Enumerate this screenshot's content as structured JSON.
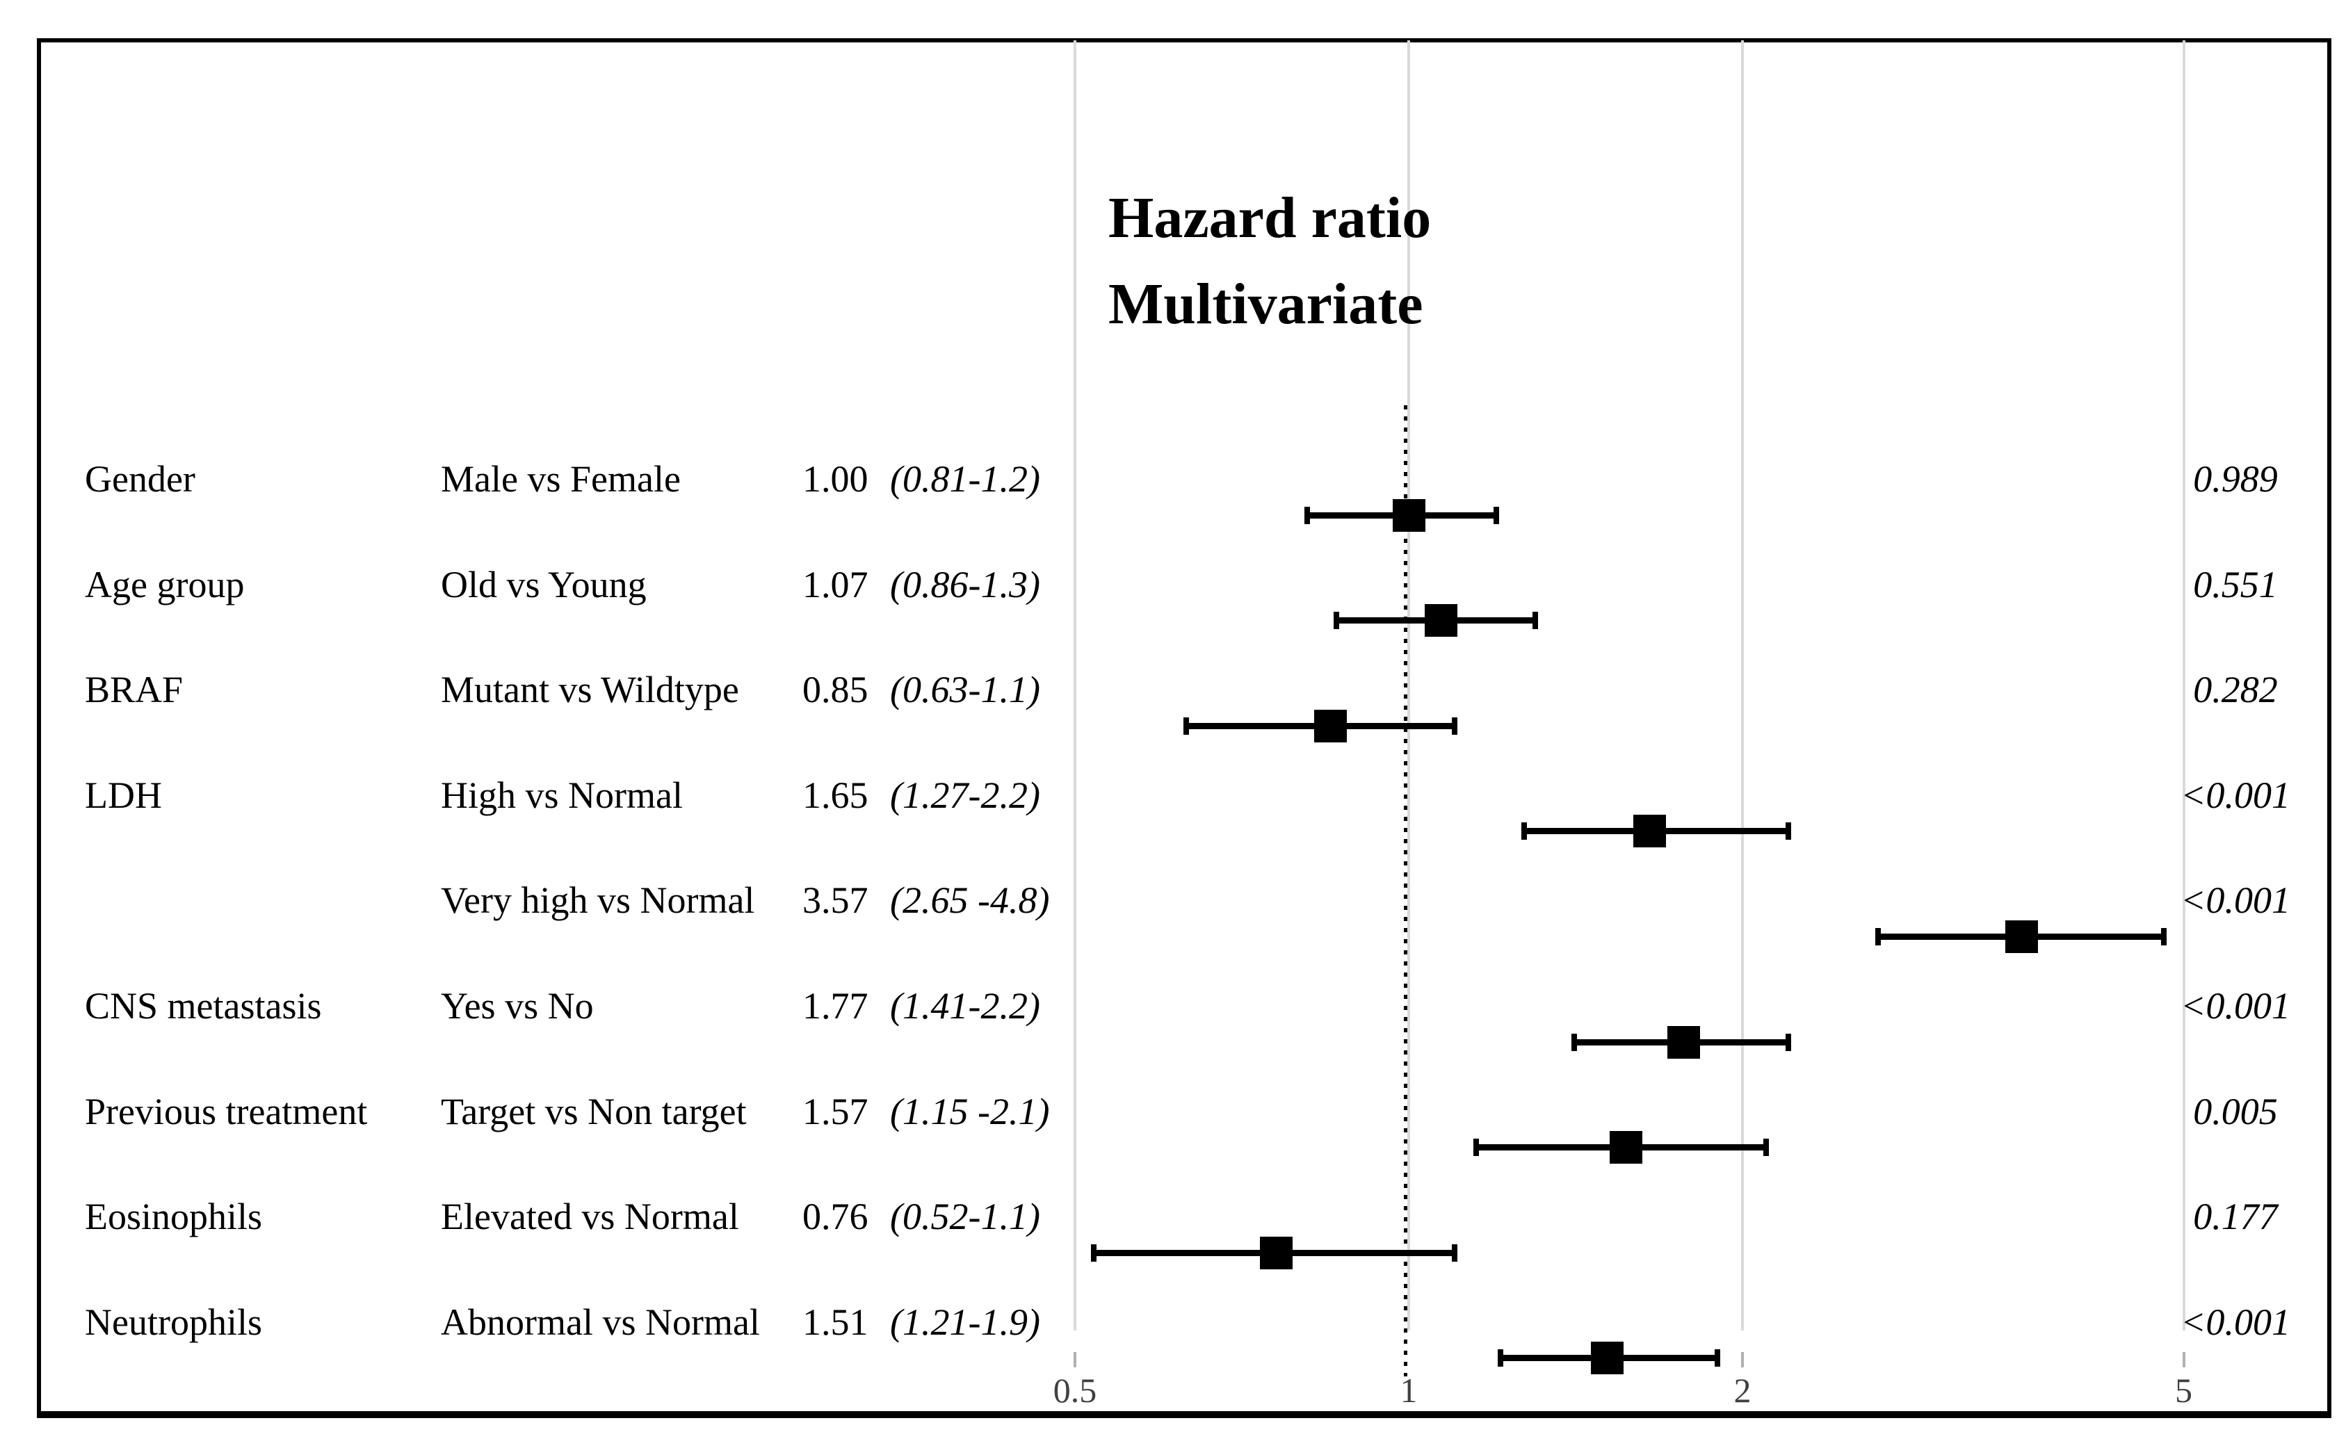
{
  "figure": {
    "title_line1": "Hazard ratio",
    "title_line2": "Multivariate"
  },
  "chart_data": {
    "type": "forest",
    "x_scale": "log",
    "x_range": [
      0.5,
      5
    ],
    "x_ticks": [
      0.5,
      1,
      2,
      5
    ],
    "x_tick_labels": [
      "0.5",
      "1",
      "2",
      "5"
    ],
    "reference_line": 1,
    "grid": true,
    "legend": "none",
    "rows": [
      {
        "variable": "Gender",
        "comparison": "Male vs Female",
        "hr": 1.0,
        "hr_label": "1.00",
        "ci": [
          0.81,
          1.2
        ],
        "ci_label": "(0.81-1.2)",
        "p_value": "0.989"
      },
      {
        "variable": "Age group",
        "comparison": "Old vs Young",
        "hr": 1.07,
        "hr_label": "1.07",
        "ci": [
          0.86,
          1.3
        ],
        "ci_label": "(0.86-1.3)",
        "p_value": "0.551"
      },
      {
        "variable": "BRAF",
        "comparison": "Mutant vs Wildtype",
        "hr": 0.85,
        "hr_label": "0.85",
        "ci": [
          0.63,
          1.1
        ],
        "ci_label": "(0.63-1.1)",
        "p_value": "0.282"
      },
      {
        "variable": "LDH",
        "comparison": "High vs Normal",
        "hr": 1.65,
        "hr_label": "1.65",
        "ci": [
          1.27,
          2.2
        ],
        "ci_label": "(1.27-2.2)",
        "p_value": "<0.001"
      },
      {
        "variable": "",
        "comparison": "Very high vs Normal",
        "hr": 3.57,
        "hr_label": "3.57",
        "ci": [
          2.65,
          4.8
        ],
        "ci_label": "(2.65 -4.8)",
        "p_value": "<0.001"
      },
      {
        "variable": "CNS metastasis",
        "comparison": "Yes vs No",
        "hr": 1.77,
        "hr_label": "1.77",
        "ci": [
          1.41,
          2.2
        ],
        "ci_label": "(1.41-2.2)",
        "p_value": "<0.001"
      },
      {
        "variable": "Previous treatment",
        "comparison": "Target vs Non target",
        "hr": 1.57,
        "hr_label": "1.57",
        "ci": [
          1.15,
          2.1
        ],
        "ci_label": "(1.15 -2.1)",
        "p_value": "0.005"
      },
      {
        "variable": "Eosinophils",
        "comparison": "Elevated vs Normal",
        "hr": 0.76,
        "hr_label": "0.76",
        "ci": [
          0.52,
          1.1
        ],
        "ci_label": "(0.52-1.1)",
        "p_value": "0.177"
      },
      {
        "variable": "Neutrophils",
        "comparison": "Abnormal vs Normal",
        "hr": 1.51,
        "hr_label": "1.51",
        "ci": [
          1.21,
          1.9
        ],
        "ci_label": "(1.21-1.9)",
        "p_value": "<0.001"
      }
    ]
  },
  "colors": {
    "text": "#000000",
    "marker": "#000000",
    "whisker": "#000000",
    "gridline": "#d9d9d9",
    "tick_mark": "#b0b0b0",
    "axis_label": "#404040",
    "reference_line": "#000000",
    "border": "#000000",
    "background": "#ffffff"
  }
}
